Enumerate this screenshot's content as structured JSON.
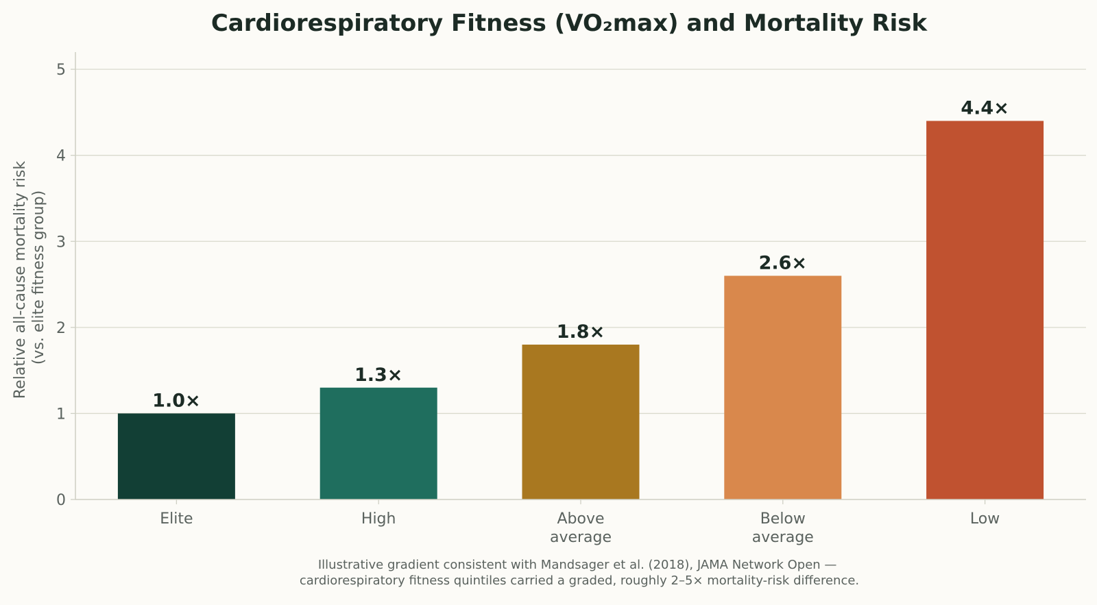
{
  "chart_data": {
    "type": "bar",
    "title": "Cardiorespiratory Fitness (VO₂max) and Mortality Risk",
    "ylabel": [
      "Relative all-cause mortality risk",
      "(vs. elite fitness group)"
    ],
    "xlabel": "",
    "ylim": [
      0,
      5.2
    ],
    "yticks": [
      0,
      1,
      2,
      3,
      4,
      5
    ],
    "grid": "horizontal",
    "categories": [
      [
        "Elite"
      ],
      [
        "High"
      ],
      [
        "Above",
        "average"
      ],
      [
        "Below",
        "average"
      ],
      [
        "Low"
      ]
    ],
    "values": [
      1.0,
      1.3,
      1.8,
      2.6,
      4.4
    ],
    "value_labels": [
      "1.0×",
      "1.3×",
      "1.8×",
      "2.6×",
      "4.4×"
    ],
    "colors": [
      "#123f35",
      "#1f6e5e",
      "#a97820",
      "#d9884c",
      "#c05230"
    ],
    "caption": [
      "Illustrative gradient consistent with Mandsager et al. (2018), JAMA Network Open —",
      "cardiorespiratory fitness quintiles carried a graded, roughly 2–5× mortality-risk difference."
    ]
  }
}
